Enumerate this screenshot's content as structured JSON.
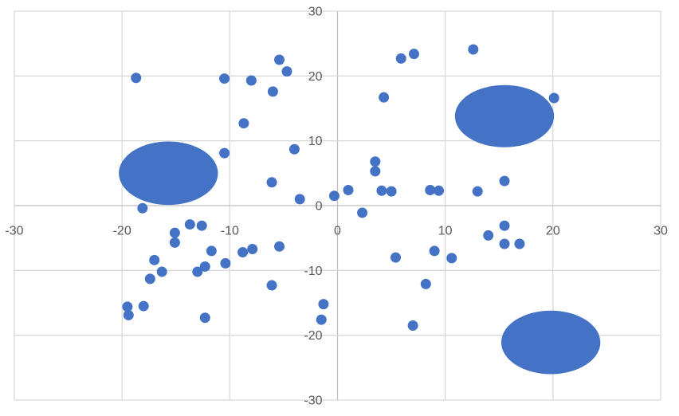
{
  "chart_data": {
    "type": "scatter",
    "title": "",
    "xlabel": "",
    "ylabel": "",
    "xlim": [
      -30,
      30
    ],
    "ylim": [
      -30,
      30
    ],
    "x_ticks": [
      -30,
      -20,
      -10,
      0,
      10,
      20,
      30
    ],
    "y_ticks": [
      -30,
      -20,
      -10,
      0,
      10,
      20,
      30
    ],
    "grid": true,
    "legend": false,
    "colors": {
      "marker": "#4472C4",
      "gridline": "#D9D9D9",
      "axis_line": "#BFBFBF",
      "tick_label": "#595959",
      "background": "#FFFFFF"
    },
    "series": [
      {
        "name": "scatter-points",
        "marker": "circle",
        "color": "#4472C4",
        "points": [
          [
            -18.7,
            19.7
          ],
          [
            -10.5,
            19.6
          ],
          [
            -8.0,
            19.3
          ],
          [
            -5.4,
            22.5
          ],
          [
            -4.7,
            20.7
          ],
          [
            -6.0,
            17.6
          ],
          [
            -8.7,
            12.7
          ],
          [
            -10.5,
            8.1
          ],
          [
            -4.0,
            8.7
          ],
          [
            -6.1,
            3.6
          ],
          [
            -3.5,
            1.0
          ],
          [
            -0.3,
            1.5
          ],
          [
            -18.1,
            -0.4
          ],
          [
            5.9,
            22.7
          ],
          [
            7.1,
            23.4
          ],
          [
            12.6,
            24.1
          ],
          [
            4.3,
            16.7
          ],
          [
            20.1,
            16.6
          ],
          [
            3.5,
            6.8
          ],
          [
            3.5,
            5.3
          ],
          [
            1.0,
            2.4
          ],
          [
            4.1,
            2.3
          ],
          [
            5.0,
            2.2
          ],
          [
            8.6,
            2.4
          ],
          [
            9.4,
            2.3
          ],
          [
            13.0,
            2.2
          ],
          [
            15.5,
            3.8
          ],
          [
            2.3,
            -1.1
          ],
          [
            15.5,
            -3.1
          ],
          [
            14.0,
            -4.6
          ],
          [
            15.5,
            -5.9
          ],
          [
            16.9,
            -5.9
          ],
          [
            9.0,
            -7.0
          ],
          [
            5.4,
            -8.0
          ],
          [
            10.6,
            -8.1
          ],
          [
            8.2,
            -12.1
          ],
          [
            7.0,
            -18.5
          ],
          [
            -13.7,
            -2.9
          ],
          [
            -12.6,
            -3.1
          ],
          [
            -15.1,
            -4.2
          ],
          [
            -15.1,
            -5.7
          ],
          [
            -11.7,
            -7.0
          ],
          [
            -17.0,
            -8.4
          ],
          [
            -16.3,
            -10.2
          ],
          [
            -17.4,
            -11.3
          ],
          [
            -13.0,
            -10.2
          ],
          [
            -12.3,
            -9.4
          ],
          [
            -10.4,
            -8.9
          ],
          [
            -8.8,
            -7.2
          ],
          [
            -7.9,
            -6.7
          ],
          [
            -5.4,
            -6.3
          ],
          [
            -19.5,
            -15.6
          ],
          [
            -19.4,
            -16.9
          ],
          [
            -18.0,
            -15.5
          ],
          [
            -12.3,
            -17.3
          ],
          [
            -6.1,
            -12.3
          ],
          [
            -1.3,
            -15.2
          ],
          [
            -1.5,
            -17.6
          ]
        ]
      },
      {
        "name": "cluster-blobs",
        "marker": "ellipse",
        "color": "#4472C4",
        "blobs": [
          {
            "x": -15.7,
            "y": 5.0,
            "rx": 4.6,
            "ry": 4.9
          },
          {
            "x": 15.5,
            "y": 13.8,
            "rx": 4.6,
            "ry": 4.8
          },
          {
            "x": 19.8,
            "y": -21.1,
            "rx": 4.6,
            "ry": 4.9
          }
        ]
      }
    ]
  }
}
